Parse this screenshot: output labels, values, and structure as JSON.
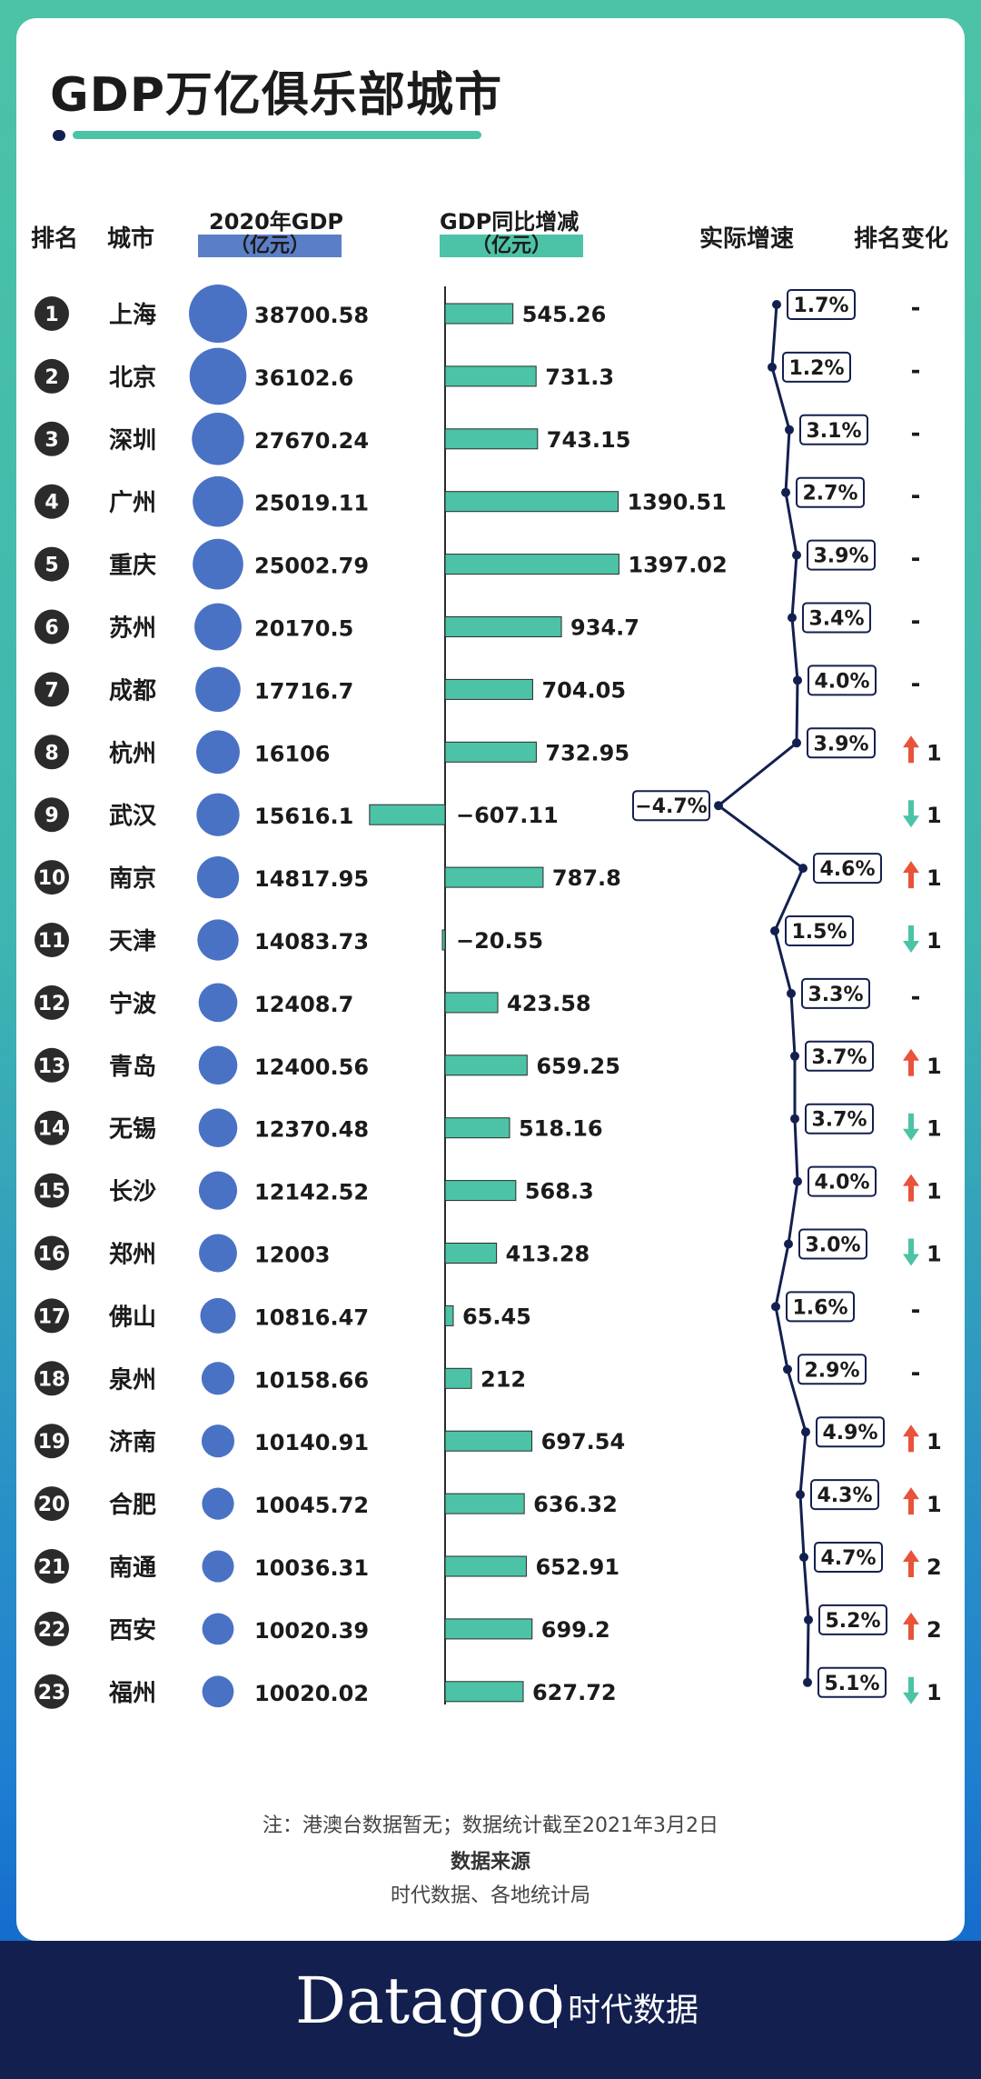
{
  "title": "GDP万亿俱乐部城市",
  "headers": {
    "rank": "排名",
    "city": "城市",
    "gdp": "2020年GDP",
    "gdp_unit": "（亿元）",
    "change": "GDP同比增减",
    "change_unit": "（亿元）",
    "growth": "实际增速",
    "rank_change": "排名变化"
  },
  "colors": {
    "bubble": "#4a72c4",
    "bar": "#4cc3a6",
    "line": "#13204f",
    "up": "#e8533a",
    "down": "#4cc3a6",
    "header_gdp": "#5b7fc7",
    "header_change": "#4cc3a6"
  },
  "chart_data": {
    "type": "table",
    "title": "GDP万亿俱乐部城市",
    "columns": [
      "排名",
      "城市",
      "2020年GDP（亿元）",
      "GDP同比增减（亿元）",
      "实际增速",
      "排名变化"
    ],
    "rows": [
      {
        "rank": "1",
        "city": "上海",
        "gdp": 38700.58,
        "gdp_text": "38700.58",
        "change": 545.26,
        "change_text": "545.26",
        "growth": 1.7,
        "growth_text": "1.7%",
        "dir": "none",
        "rank_delta": "-"
      },
      {
        "rank": "2",
        "city": "北京",
        "gdp": 36102.6,
        "gdp_text": "36102.6",
        "change": 731.3,
        "change_text": "731.3",
        "growth": 1.2,
        "growth_text": "1.2%",
        "dir": "none",
        "rank_delta": "-"
      },
      {
        "rank": "3",
        "city": "深圳",
        "gdp": 27670.24,
        "gdp_text": "27670.24",
        "change": 743.15,
        "change_text": "743.15",
        "growth": 3.1,
        "growth_text": "3.1%",
        "dir": "none",
        "rank_delta": "-"
      },
      {
        "rank": "4",
        "city": "广州",
        "gdp": 25019.11,
        "gdp_text": "25019.11",
        "change": 1390.51,
        "change_text": "1390.51",
        "growth": 2.7,
        "growth_text": "2.7%",
        "dir": "none",
        "rank_delta": "-"
      },
      {
        "rank": "5",
        "city": "重庆",
        "gdp": 25002.79,
        "gdp_text": "25002.79",
        "change": 1397.02,
        "change_text": "1397.02",
        "growth": 3.9,
        "growth_text": "3.9%",
        "dir": "none",
        "rank_delta": "-"
      },
      {
        "rank": "6",
        "city": "苏州",
        "gdp": 20170.5,
        "gdp_text": "20170.5",
        "change": 934.7,
        "change_text": "934.7",
        "growth": 3.4,
        "growth_text": "3.4%",
        "dir": "none",
        "rank_delta": "-"
      },
      {
        "rank": "7",
        "city": "成都",
        "gdp": 17716.7,
        "gdp_text": "17716.7",
        "change": 704.05,
        "change_text": "704.05",
        "growth": 4.0,
        "growth_text": "4.0%",
        "dir": "none",
        "rank_delta": "-"
      },
      {
        "rank": "8",
        "city": "杭州",
        "gdp": 16106,
        "gdp_text": "16106",
        "change": 732.95,
        "change_text": "732.95",
        "growth": 3.9,
        "growth_text": "3.9%",
        "dir": "up",
        "rank_delta": "1"
      },
      {
        "rank": "9",
        "city": "武汉",
        "gdp": 15616.1,
        "gdp_text": "15616.1",
        "change": -607.11,
        "change_text": "−607.11",
        "growth": -4.7,
        "growth_text": "−4.7%",
        "dir": "down",
        "rank_delta": "1"
      },
      {
        "rank": "10",
        "city": "南京",
        "gdp": 14817.95,
        "gdp_text": "14817.95",
        "change": 787.8,
        "change_text": "787.8",
        "growth": 4.6,
        "growth_text": "4.6%",
        "dir": "up",
        "rank_delta": "1"
      },
      {
        "rank": "11",
        "city": "天津",
        "gdp": 14083.73,
        "gdp_text": "14083.73",
        "change": -20.55,
        "change_text": "−20.55",
        "growth": 1.5,
        "growth_text": "1.5%",
        "dir": "down",
        "rank_delta": "1"
      },
      {
        "rank": "12",
        "city": "宁波",
        "gdp": 12408.7,
        "gdp_text": "12408.7",
        "change": 423.58,
        "change_text": "423.58",
        "growth": 3.3,
        "growth_text": "3.3%",
        "dir": "none",
        "rank_delta": "-"
      },
      {
        "rank": "13",
        "city": "青岛",
        "gdp": 12400.56,
        "gdp_text": "12400.56",
        "change": 659.25,
        "change_text": "659.25",
        "growth": 3.7,
        "growth_text": "3.7%",
        "dir": "up",
        "rank_delta": "1"
      },
      {
        "rank": "14",
        "city": "无锡",
        "gdp": 12370.48,
        "gdp_text": "12370.48",
        "change": 518.16,
        "change_text": "518.16",
        "growth": 3.7,
        "growth_text": "3.7%",
        "dir": "down",
        "rank_delta": "1"
      },
      {
        "rank": "15",
        "city": "长沙",
        "gdp": 12142.52,
        "gdp_text": "12142.52",
        "change": 568.3,
        "change_text": "568.3",
        "growth": 4.0,
        "growth_text": "4.0%",
        "dir": "up",
        "rank_delta": "1"
      },
      {
        "rank": "16",
        "city": "郑州",
        "gdp": 12003,
        "gdp_text": "12003",
        "change": 413.28,
        "change_text": "413.28",
        "growth": 3.0,
        "growth_text": "3.0%",
        "dir": "down",
        "rank_delta": "1"
      },
      {
        "rank": "17",
        "city": "佛山",
        "gdp": 10816.47,
        "gdp_text": "10816.47",
        "change": 65.45,
        "change_text": "65.45",
        "growth": 1.6,
        "growth_text": "1.6%",
        "dir": "none",
        "rank_delta": "-"
      },
      {
        "rank": "18",
        "city": "泉州",
        "gdp": 10158.66,
        "gdp_text": "10158.66",
        "change": 212,
        "change_text": "212",
        "growth": 2.9,
        "growth_text": "2.9%",
        "dir": "none",
        "rank_delta": "-"
      },
      {
        "rank": "19",
        "city": "济南",
        "gdp": 10140.91,
        "gdp_text": "10140.91",
        "change": 697.54,
        "change_text": "697.54",
        "growth": 4.9,
        "growth_text": "4.9%",
        "dir": "up",
        "rank_delta": "1"
      },
      {
        "rank": "20",
        "city": "合肥",
        "gdp": 10045.72,
        "gdp_text": "10045.72",
        "change": 636.32,
        "change_text": "636.32",
        "growth": 4.3,
        "growth_text": "4.3%",
        "dir": "up",
        "rank_delta": "1"
      },
      {
        "rank": "21",
        "city": "南通",
        "gdp": 10036.31,
        "gdp_text": "10036.31",
        "change": 652.91,
        "change_text": "652.91",
        "growth": 4.7,
        "growth_text": "4.7%",
        "dir": "up",
        "rank_delta": "2"
      },
      {
        "rank": "22",
        "city": "西安",
        "gdp": 10020.39,
        "gdp_text": "10020.39",
        "change": 699.2,
        "change_text": "699.2",
        "growth": 5.2,
        "growth_text": "5.2%",
        "dir": "up",
        "rank_delta": "2"
      },
      {
        "rank": "23",
        "city": "福州",
        "gdp": 10020.02,
        "gdp_text": "10020.02",
        "change": 627.72,
        "change_text": "627.72",
        "growth": 5.1,
        "growth_text": "5.1%",
        "dir": "down",
        "rank_delta": "1"
      }
    ]
  },
  "footer": {
    "note": "注：港澳台数据暂无；数据统计截至2021年3月2日",
    "source_title": "数据来源",
    "source": "时代数据、各地统计局",
    "brand": "Datagoo",
    "brand_cn": "时代数据"
  }
}
